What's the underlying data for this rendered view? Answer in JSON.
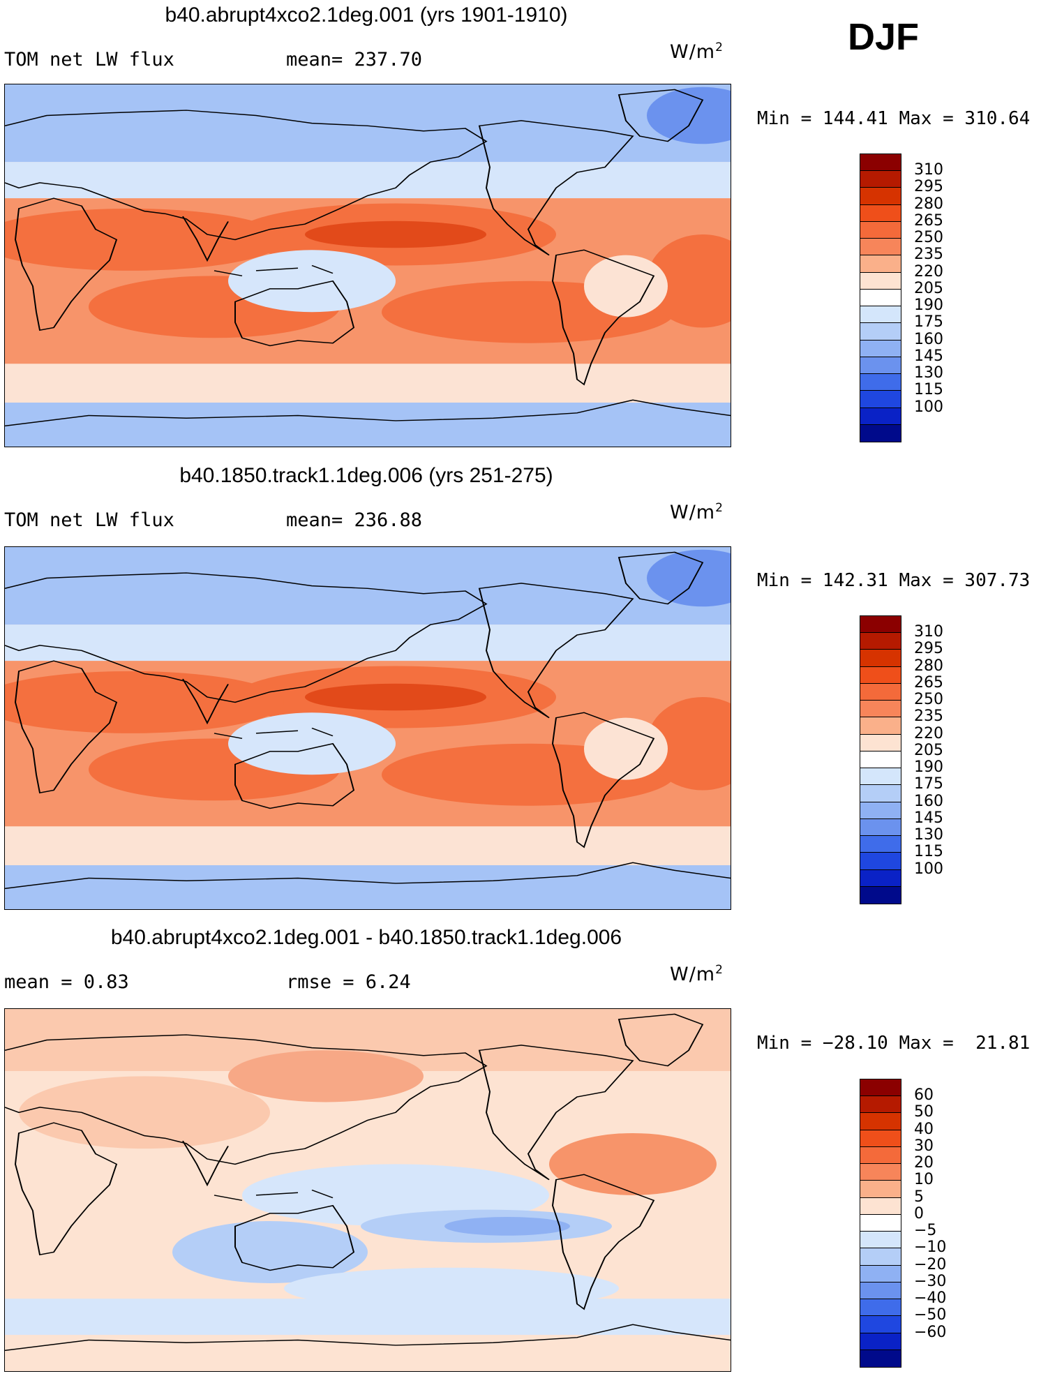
{
  "season": "DJF",
  "panels": [
    {
      "title": "b40.abrupt4xco2.1deg.001 (yrs 1901-1910)",
      "left_label": "TOM net LW flux",
      "mid_label": "mean= 237.70",
      "units": "W/m",
      "units_sup": "2",
      "minmax": "Min = 144.41 Max = 310.64",
      "colorbar": {
        "labels": [
          "310",
          "295",
          "280",
          "265",
          "250",
          "235",
          "220",
          "205",
          "190",
          "175",
          "160",
          "145",
          "130",
          "115",
          "100"
        ],
        "colors": [
          "#8b0000",
          "#b51a00",
          "#d63300",
          "#ef4f1a",
          "#f46a3a",
          "#f7855a",
          "#fab08a",
          "#fde3d2",
          "#ffffff",
          "#d4e6fb",
          "#b4cef7",
          "#8fb1f3",
          "#6b92ee",
          "#3f6cea",
          "#1f47e0",
          "#0a22c6",
          "#000a8b"
        ]
      },
      "map_colors": {
        "ocean_warm": "#f4703f",
        "ocean_mid": "#f7946a",
        "cool": "#fce3d4",
        "pale_blue": "#d6e6fb",
        "blue": "#a5c3f6",
        "deep_blue": "#6b92ee",
        "hot": "#e24a1a"
      }
    },
    {
      "title": "b40.1850.track1.1deg.006 (yrs 251-275)",
      "left_label": "TOM net LW flux",
      "mid_label": "mean= 236.88",
      "units": "W/m",
      "units_sup": "2",
      "minmax": "Min = 142.31 Max = 307.73",
      "colorbar": {
        "labels": [
          "310",
          "295",
          "280",
          "265",
          "250",
          "235",
          "220",
          "205",
          "190",
          "175",
          "160",
          "145",
          "130",
          "115",
          "100"
        ],
        "colors": [
          "#8b0000",
          "#b51a00",
          "#d63300",
          "#ef4f1a",
          "#f46a3a",
          "#f7855a",
          "#fab08a",
          "#fde3d2",
          "#ffffff",
          "#d4e6fb",
          "#b4cef7",
          "#8fb1f3",
          "#6b92ee",
          "#3f6cea",
          "#1f47e0",
          "#0a22c6",
          "#000a8b"
        ]
      },
      "map_colors": {
        "ocean_warm": "#f4703f",
        "ocean_mid": "#f7946a",
        "cool": "#fce3d4",
        "pale_blue": "#d6e6fb",
        "blue": "#a5c3f6",
        "deep_blue": "#6b92ee",
        "hot": "#e24a1a"
      }
    },
    {
      "title": "b40.abrupt4xco2.1deg.001 - b40.1850.track1.1deg.006",
      "left_label": "mean =     0.83",
      "mid_label": "rmse =     6.24",
      "units": "W/m",
      "units_sup": "2",
      "minmax": "Min = −28.10 Max =  21.81",
      "colorbar": {
        "labels": [
          "60",
          "50",
          "40",
          "30",
          "20",
          "10",
          "5",
          "0",
          "−5",
          "−10",
          "−20",
          "−30",
          "−40",
          "−50",
          "−60"
        ],
        "colors": [
          "#8b0000",
          "#b51a00",
          "#d63300",
          "#ef4f1a",
          "#f46a3a",
          "#f7855a",
          "#fab08a",
          "#fde3d2",
          "#ffffff",
          "#d4e6fb",
          "#b4cef7",
          "#8fb1f3",
          "#6b92ee",
          "#3f6cea",
          "#1f47e0",
          "#0a22c6",
          "#000a8b"
        ]
      },
      "map_colors": {
        "ocean_warm": "#f7a886",
        "ocean_mid": "#fbc9ae",
        "cool": "#fde3d2",
        "pale_blue": "#d6e6fb",
        "blue": "#b4cef7",
        "deep_blue": "#8fb1f3",
        "hot": "#f7946a"
      }
    }
  ]
}
